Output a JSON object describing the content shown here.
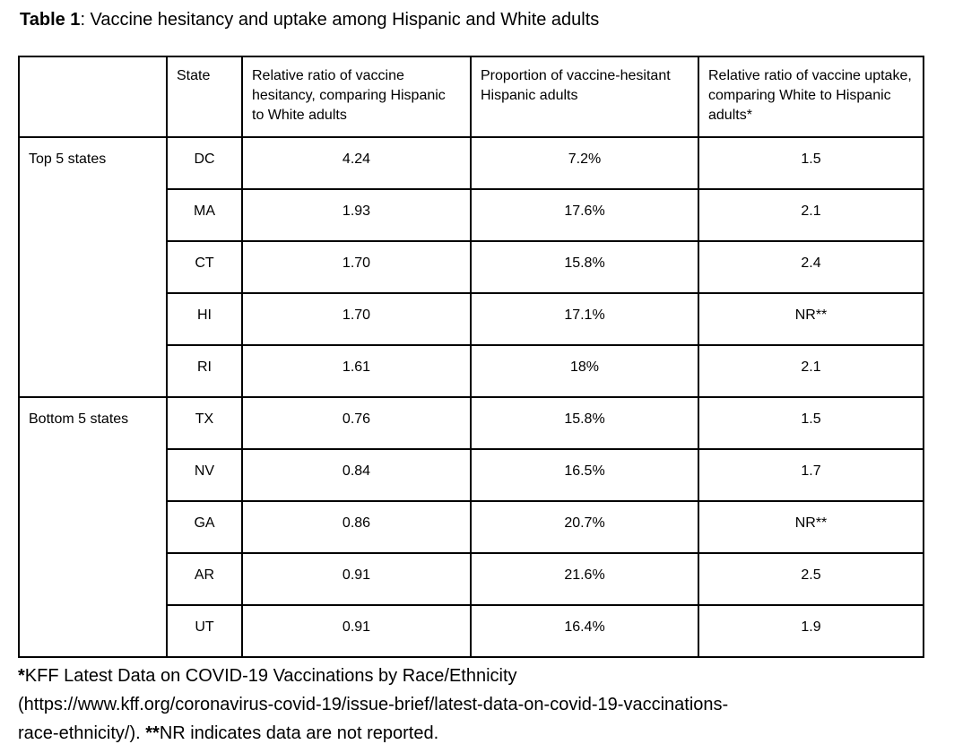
{
  "title": {
    "label": "Table 1",
    "rest": ": Vaccine hesitancy and uptake among Hispanic and White adults"
  },
  "table": {
    "headers": {
      "group": "",
      "state": "State",
      "hesitancy_ratio": "Relative ratio of vaccine hesitancy, comparing Hispanic to White adults",
      "hesitant_proportion": "Proportion of vaccine-hesitant Hispanic adults",
      "uptake_ratio": "Relative ratio of vaccine uptake, comparing White to Hispanic adults*"
    },
    "groups": [
      {
        "label": "Top 5 states",
        "rows": [
          {
            "state": "DC",
            "hesitancy_ratio": "4.24",
            "hesitant_proportion": "7.2%",
            "uptake_ratio": "1.5"
          },
          {
            "state": "MA",
            "hesitancy_ratio": "1.93",
            "hesitant_proportion": "17.6%",
            "uptake_ratio": "2.1"
          },
          {
            "state": "CT",
            "hesitancy_ratio": "1.70",
            "hesitant_proportion": "15.8%",
            "uptake_ratio": "2.4"
          },
          {
            "state": "HI",
            "hesitancy_ratio": "1.70",
            "hesitant_proportion": "17.1%",
            "uptake_ratio": "NR**"
          },
          {
            "state": "RI",
            "hesitancy_ratio": "1.61",
            "hesitant_proportion": "18%",
            "uptake_ratio": "2.1"
          }
        ]
      },
      {
        "label": "Bottom 5 states",
        "rows": [
          {
            "state": "TX",
            "hesitancy_ratio": "0.76",
            "hesitant_proportion": "15.8%",
            "uptake_ratio": "1.5"
          },
          {
            "state": "NV",
            "hesitancy_ratio": "0.84",
            "hesitant_proportion": "16.5%",
            "uptake_ratio": "1.7"
          },
          {
            "state": "GA",
            "hesitancy_ratio": "0.86",
            "hesitant_proportion": "20.7%",
            "uptake_ratio": "NR**"
          },
          {
            "state": "AR",
            "hesitancy_ratio": "0.91",
            "hesitant_proportion": "21.6%",
            "uptake_ratio": "2.5"
          },
          {
            "state": "UT",
            "hesitancy_ratio": "0.91",
            "hesitant_proportion": "16.4%",
            "uptake_ratio": "1.9"
          }
        ]
      }
    ]
  },
  "footnote": {
    "star": "*",
    "line1": "KFF Latest Data on COVID-19 Vaccinations by Race/Ethnicity",
    "line2": "(https://www.kff.org/coronavirus-covid-19/issue-brief/latest-data-on-covid-19-vaccinations-",
    "line3_pre": "race-ethnicity/). ",
    "double_star": "**",
    "line3_post": "NR indicates data are not reported."
  },
  "colors": {
    "background": "#ffffff",
    "text": "#000000",
    "border": "#000000"
  }
}
